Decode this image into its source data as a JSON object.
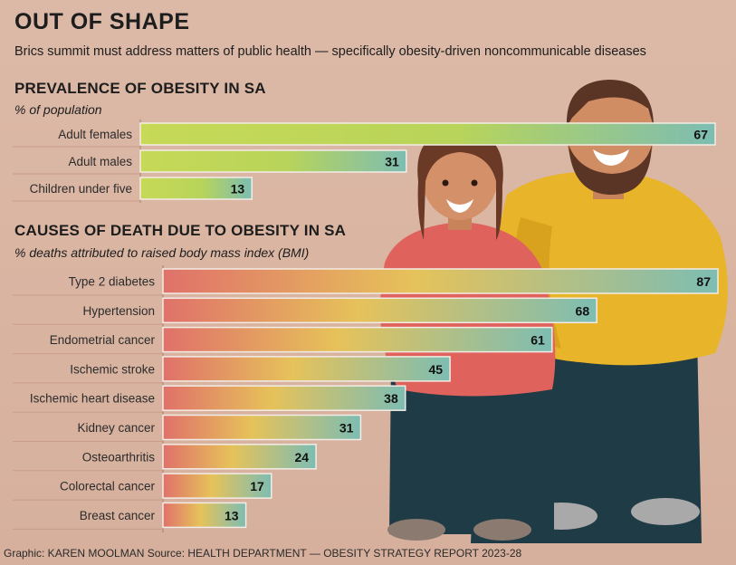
{
  "header": {
    "title": "OUT OF SHAPE",
    "subtitle": "Brics summit must address matters of public health — specifically obesity-driven noncommunicable diseases"
  },
  "footer": {
    "credit": "Graphic: KAREN MOOLMAN  Source: HEALTH DEPARTMENT — OBESITY STRATEGY REPORT  2023-28"
  },
  "colors": {
    "background": "#d9b5a3",
    "bar_green": "#c7d957",
    "bar_teal": "#7dbdb2",
    "bar_red": "#e0716a",
    "bar_yellow": "#e6c25a",
    "woman_top": "#e0625c",
    "man_top": "#e8b429",
    "trousers": "#1f3b45"
  },
  "chart_data": [
    {
      "type": "bar",
      "orientation": "horizontal",
      "title": "PREVALENCE OF OBESITY IN SA",
      "subtitle": "% of population",
      "categories": [
        "Adult females",
        "Adult males",
        "Children under five"
      ],
      "values": [
        67,
        31,
        13
      ],
      "xlim": [
        0,
        67
      ],
      "grid": false
    },
    {
      "type": "bar",
      "orientation": "horizontal",
      "title": "CAUSES OF DEATH DUE TO OBESITY IN SA",
      "subtitle": "% deaths attributed to raised body mass index (BMI)",
      "categories": [
        "Type 2 diabetes",
        "Hypertension",
        "Endometrial cancer",
        "Ischemic stroke",
        "Ischemic heart disease",
        "Kidney cancer",
        "Osteoarthritis",
        "Colorectal cancer",
        "Breast cancer"
      ],
      "values": [
        87,
        68,
        61,
        45,
        38,
        31,
        24,
        17,
        13
      ],
      "xlim": [
        0,
        87
      ],
      "grid": false
    }
  ]
}
